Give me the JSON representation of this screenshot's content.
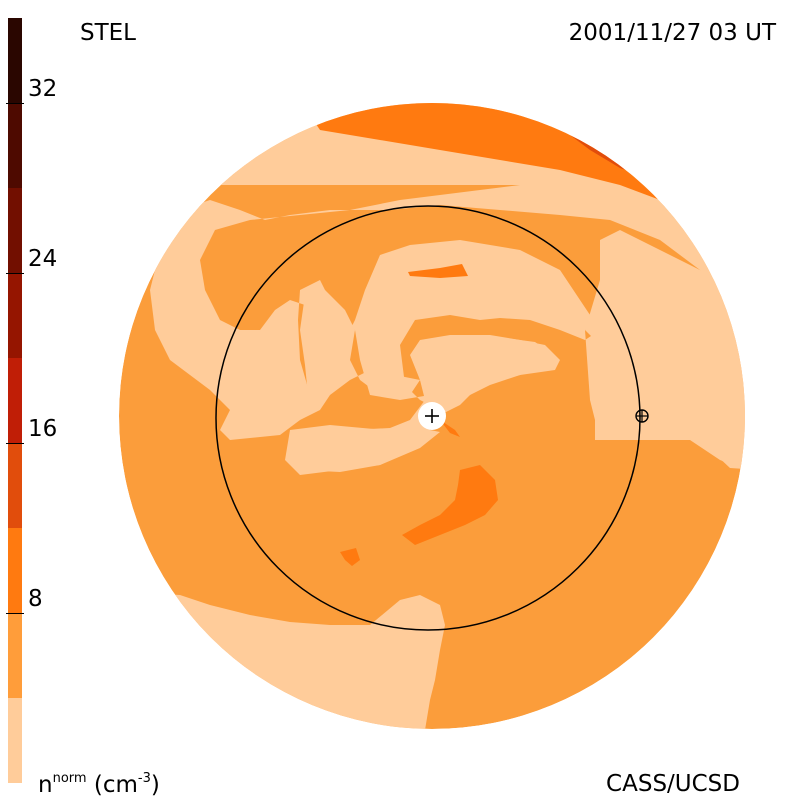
{
  "header": {
    "observatory": "STEL",
    "timestamp": "2001/11/27 03 UT"
  },
  "footer": {
    "credit": "CASS/UCSD"
  },
  "colorbar": {
    "unit_base": "n",
    "unit_sup": "norm",
    "unit_rest": "(cm",
    "unit_exp": "-3",
    "unit_close": ")",
    "ticks": [
      "32",
      "24",
      "16",
      "8"
    ],
    "tick_values": [
      32,
      24,
      16,
      8
    ],
    "range": [
      0,
      36
    ],
    "levels": [
      {
        "from": 32,
        "to": 36,
        "color": "#2a0600"
      },
      {
        "from": 28,
        "to": 32,
        "color": "#4e0a00"
      },
      {
        "from": 24,
        "to": 28,
        "color": "#720f00"
      },
      {
        "from": 20,
        "to": 24,
        "color": "#951500"
      },
      {
        "from": 16,
        "to": 20,
        "color": "#c01e06"
      },
      {
        "from": 12,
        "to": 16,
        "color": "#e14d0c"
      },
      {
        "from": 8,
        "to": 12,
        "color": "#ff7a10"
      },
      {
        "from": 4,
        "to": 8,
        "color": "#ff9d3a"
      },
      {
        "from": 0,
        "to": 4,
        "color": "#ffcc9a"
      }
    ]
  },
  "colors": {
    "level_low": "#ffcc9a",
    "level_mid": "#fb9d3b",
    "level_high": "#ff7a10",
    "level_peak": "#e14d0c"
  }
}
